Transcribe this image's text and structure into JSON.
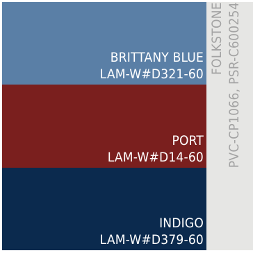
{
  "colors": {
    "brittany_blue": "#5a7fa6",
    "port": "#7a1f1e",
    "indigo": "#0b2a4e",
    "sidebar_bg": "#e6e6e4",
    "sidebar_text": "#a3a3a3"
  },
  "swatches": [
    {
      "name": "BRITTANY BLUE",
      "code": "LAM-W#D321-60"
    },
    {
      "name": "PORT",
      "code": "LAM-W#D14-60"
    },
    {
      "name": "INDIGO",
      "code": "LAM-W#D379-60"
    }
  ],
  "sidebar": {
    "collection": "FOLKSTONE",
    "products": "PVC-CP1066, PSR-C600254"
  }
}
